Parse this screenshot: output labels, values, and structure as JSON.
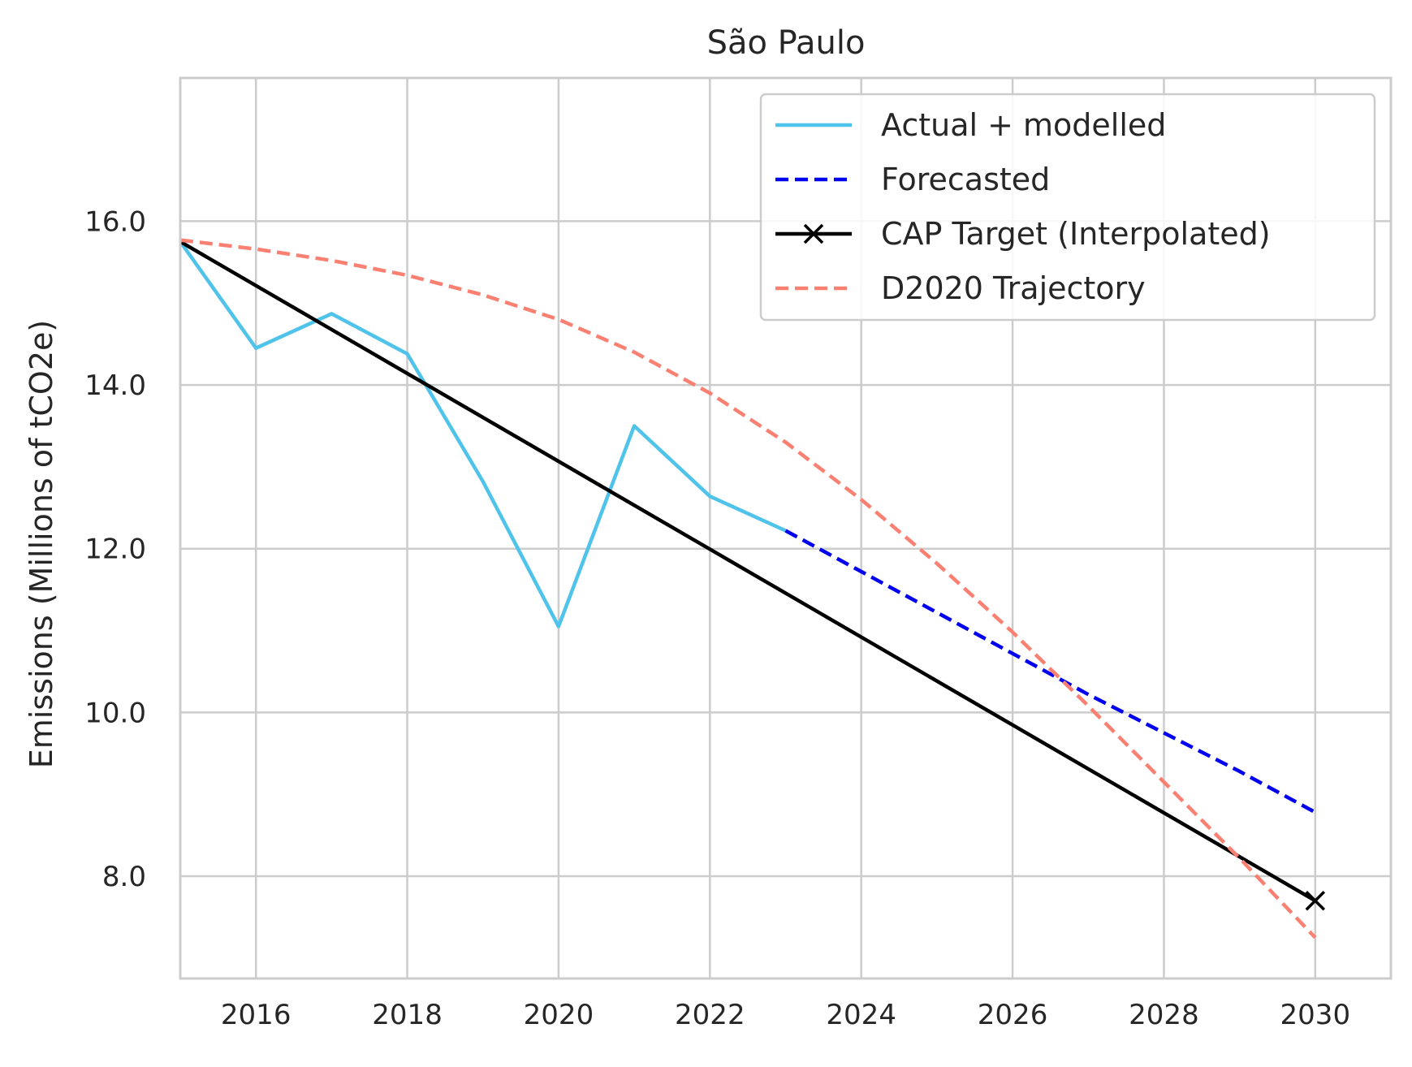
{
  "chart_data": {
    "type": "line",
    "title": "São Paulo",
    "xlabel": "",
    "ylabel": "Emissions (Millions of tCO2e)",
    "xlim": [
      2015,
      2031
    ],
    "ylim": [
      6.75,
      17.75
    ],
    "xticks": [
      2016,
      2018,
      2020,
      2022,
      2024,
      2026,
      2028,
      2030
    ],
    "yticks": [
      8,
      10,
      12,
      14,
      16
    ],
    "ytick_labels": [
      "8.0",
      "10.0",
      "12.0",
      "14.0",
      "16.0"
    ],
    "grid": true,
    "legend_position": "top-right",
    "series": [
      {
        "name": "Actual + modelled",
        "style": "solid",
        "color": "#4fc3ea",
        "x": [
          2015,
          2016,
          2017,
          2018,
          2019,
          2020,
          2021,
          2022,
          2023
        ],
        "y": [
          15.75,
          14.45,
          14.87,
          14.38,
          12.82,
          11.05,
          13.5,
          12.64,
          12.22
        ]
      },
      {
        "name": "Forecasted",
        "style": "dashed",
        "color": "#0000ee",
        "x": [
          2023,
          2024,
          2025,
          2026,
          2027,
          2028,
          2029,
          2030
        ],
        "y": [
          12.22,
          11.72,
          11.22,
          10.72,
          10.22,
          9.75,
          9.28,
          8.78
        ]
      },
      {
        "name": "CAP Target (Interpolated)",
        "style": "solid",
        "color": "#000000",
        "marker": "x",
        "marker_at_last_point": true,
        "x": [
          2015,
          2030
        ],
        "y": [
          15.75,
          7.7
        ]
      },
      {
        "name": "D2020 Trajectory",
        "style": "dashed",
        "color": "#fa8072",
        "x": [
          2015,
          2016,
          2017,
          2018,
          2019,
          2020,
          2021,
          2022,
          2023,
          2024,
          2025,
          2026,
          2027,
          2028,
          2029,
          2030
        ],
        "y": [
          15.77,
          15.66,
          15.52,
          15.34,
          15.1,
          14.8,
          14.4,
          13.9,
          13.3,
          12.6,
          11.82,
          10.98,
          10.08,
          9.15,
          8.22,
          7.25
        ]
      }
    ]
  },
  "colors": {
    "grid": "#cccccc",
    "frame": "#cccccc",
    "text": "#262626",
    "legend_border": "#cccccc"
  }
}
